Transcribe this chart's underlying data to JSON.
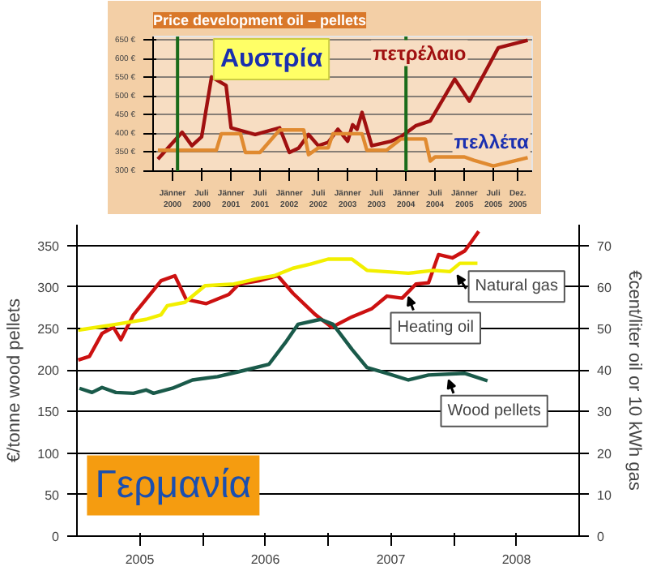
{
  "chart_data": [
    {
      "type": "line",
      "title": "Price development oil – pellets",
      "annotations": [
        "Αυστρία"
      ],
      "grid": "y",
      "xlim": [
        "1999-09",
        "2006-03"
      ],
      "ylim": [
        300,
        660
      ],
      "xticks": [
        {
          "value": "2000-01",
          "label": "Jänner 2000"
        },
        {
          "value": "2000-07",
          "label": "Juli 2000"
        },
        {
          "value": "2001-01",
          "label": "Jänner 2001"
        },
        {
          "value": "2001-07",
          "label": "Juli 2001"
        },
        {
          "value": "2002-01",
          "label": "Jänner 2002"
        },
        {
          "value": "2002-07",
          "label": "Juli 2002"
        },
        {
          "value": "2003-01",
          "label": "Jänner 2003"
        },
        {
          "value": "2003-07",
          "label": "Juli 2003"
        },
        {
          "value": "2004-01",
          "label": "Jänner 2004"
        },
        {
          "value": "2004-07",
          "label": "Juli 2004"
        },
        {
          "value": "2005-01",
          "label": "Jänner 2005"
        },
        {
          "value": "2005-07",
          "label": "Juli 2005"
        },
        {
          "value": "2005-12",
          "label": "Dez. 2005"
        }
      ],
      "yticks": [
        {
          "value": 300,
          "label": "300 €"
        },
        {
          "value": 350,
          "label": "350 €"
        },
        {
          "value": 400,
          "label": "400 €"
        },
        {
          "value": 450,
          "label": "450 €"
        },
        {
          "value": 500,
          "label": "500 €"
        },
        {
          "value": 550,
          "label": "550 €"
        },
        {
          "value": 600,
          "label": "600 €"
        },
        {
          "value": 650,
          "label": "650 €"
        }
      ],
      "ref_lines": [
        {
          "axis": "x",
          "value": "2000-02",
          "color": "#1a6b1a"
        },
        {
          "axis": "x",
          "value": "2004-01",
          "color": "#1a6b1a"
        }
      ],
      "series": [
        {
          "name": "πετρέλαιο",
          "color": "#a01010",
          "x": [
            "1999-10",
            "2000-03",
            "2000-05",
            "2000-07",
            "2000-09",
            "2000-12",
            "2001-01",
            "2001-06",
            "2001-11",
            "2002-01",
            "2002-03",
            "2002-05",
            "2002-07",
            "2002-09",
            "2002-11",
            "2003-01",
            "2003-02",
            "2003-03",
            "2003-04",
            "2003-06",
            "2003-10",
            "2003-12",
            "2004-03",
            "2004-06",
            "2004-11",
            "2005-02",
            "2005-08",
            "2006-02"
          ],
          "values": [
            332,
            404,
            368,
            392,
            552,
            529,
            416,
            398,
            416,
            350,
            362,
            398,
            368,
            377,
            412,
            380,
            424,
            412,
            457,
            368,
            380,
            392,
            421,
            434,
            546,
            487,
            630,
            650
          ]
        },
        {
          "name": "πελλέτα",
          "color": "#e08a30",
          "x": [
            "1999-10",
            "2000-10",
            "2000-11",
            "2001-03",
            "2001-04",
            "2001-07",
            "2001-11",
            "2002-04",
            "2002-05",
            "2002-07",
            "2002-09",
            "2002-10",
            "2003-04",
            "2003-05",
            "2003-09",
            "2003-12",
            "2004-05",
            "2004-06",
            "2004-07",
            "2005-01",
            "2005-03",
            "2005-07",
            "2006-02"
          ],
          "values": [
            356,
            356,
            400,
            400,
            350,
            350,
            410,
            410,
            344,
            362,
            362,
            400,
            400,
            356,
            356,
            386,
            386,
            327,
            338,
            338,
            329,
            314,
            336
          ]
        }
      ]
    },
    {
      "type": "line",
      "annotations": [
        "Γερμανία"
      ],
      "ylabel": "€/tonne wood pellets",
      "y2label": "€cent/liter oil or 10 kWh gas",
      "grid": "y",
      "legend": "right",
      "xlim": [
        2005.0,
        2009.0
      ],
      "ylim": [
        0,
        375
      ],
      "y2lim": [
        0,
        75
      ],
      "xticks": [
        {
          "value": 2005.5,
          "label": "2005"
        },
        {
          "value": 2006.0,
          "label": null
        },
        {
          "value": 2006.5,
          "label": "2006"
        },
        {
          "value": 2007.0,
          "label": null
        },
        {
          "value": 2007.5,
          "label": "2007"
        },
        {
          "value": 2008.0,
          "label": null
        },
        {
          "value": 2008.5,
          "label": "2008"
        }
      ],
      "yticks": [
        0,
        50,
        100,
        150,
        200,
        250,
        300,
        350
      ],
      "y2ticks": [
        0,
        10,
        20,
        30,
        40,
        50,
        60,
        70
      ],
      "series": [
        {
          "name": "Heating oil",
          "color": "#cc1111",
          "axis": "y2",
          "x": [
            2005.01,
            2005.1,
            2005.2,
            2005.29,
            2005.35,
            2005.45,
            2005.55,
            2005.67,
            2005.78,
            2005.87,
            2006.03,
            2006.21,
            2006.29,
            2006.45,
            2006.6,
            2006.72,
            2006.9,
            2007.03,
            2007.19,
            2007.35,
            2007.47,
            2007.59,
            2007.7,
            2007.8,
            2007.88,
            2007.99,
            2008.09,
            2008.2
          ],
          "values": [
            42.4,
            43.3,
            48.8,
            50.3,
            47.3,
            53.3,
            57.0,
            61.5,
            62.7,
            57.0,
            56.0,
            58.2,
            60.7,
            61.5,
            62.7,
            58.5,
            53.3,
            50.3,
            52.8,
            54.8,
            57.8,
            57.3,
            60.7,
            61.0,
            67.8,
            67.0,
            68.7,
            73.4
          ]
        },
        {
          "name": "Natural gas",
          "color": "#f2ef00",
          "axis": "y2",
          "x": [
            2005.01,
            2005.31,
            2005.55,
            2005.67,
            2005.72,
            2005.86,
            2006.02,
            2006.25,
            2006.45,
            2006.57,
            2006.72,
            2006.86,
            2007.0,
            2007.19,
            2007.31,
            2007.64,
            2007.84,
            2007.97,
            2008.05,
            2008.19
          ],
          "values": [
            49.6,
            51.0,
            52.2,
            53.3,
            55.5,
            56.3,
            60.3,
            60.7,
            62.1,
            62.7,
            64.5,
            65.5,
            66.7,
            66.7,
            64.0,
            63.3,
            64.0,
            63.7,
            65.7,
            65.7
          ]
        },
        {
          "name": "Wood pellets",
          "color": "#1a5a4a",
          "x": [
            2005.02,
            2005.12,
            2005.2,
            2005.31,
            2005.45,
            2005.55,
            2005.61,
            2005.76,
            2005.92,
            2006.12,
            2006.29,
            2006.53,
            2006.66,
            2006.76,
            2006.94,
            2007.04,
            2007.19,
            2007.31,
            2007.47,
            2007.64,
            2007.8,
            2008.09,
            2008.27
          ],
          "values": [
            178,
            173,
            179,
            173,
            172,
            176,
            172,
            178,
            188,
            192,
            198,
            207,
            233,
            255,
            261,
            255,
            225,
            203,
            196,
            188,
            194,
            196,
            187
          ]
        }
      ]
    }
  ]
}
